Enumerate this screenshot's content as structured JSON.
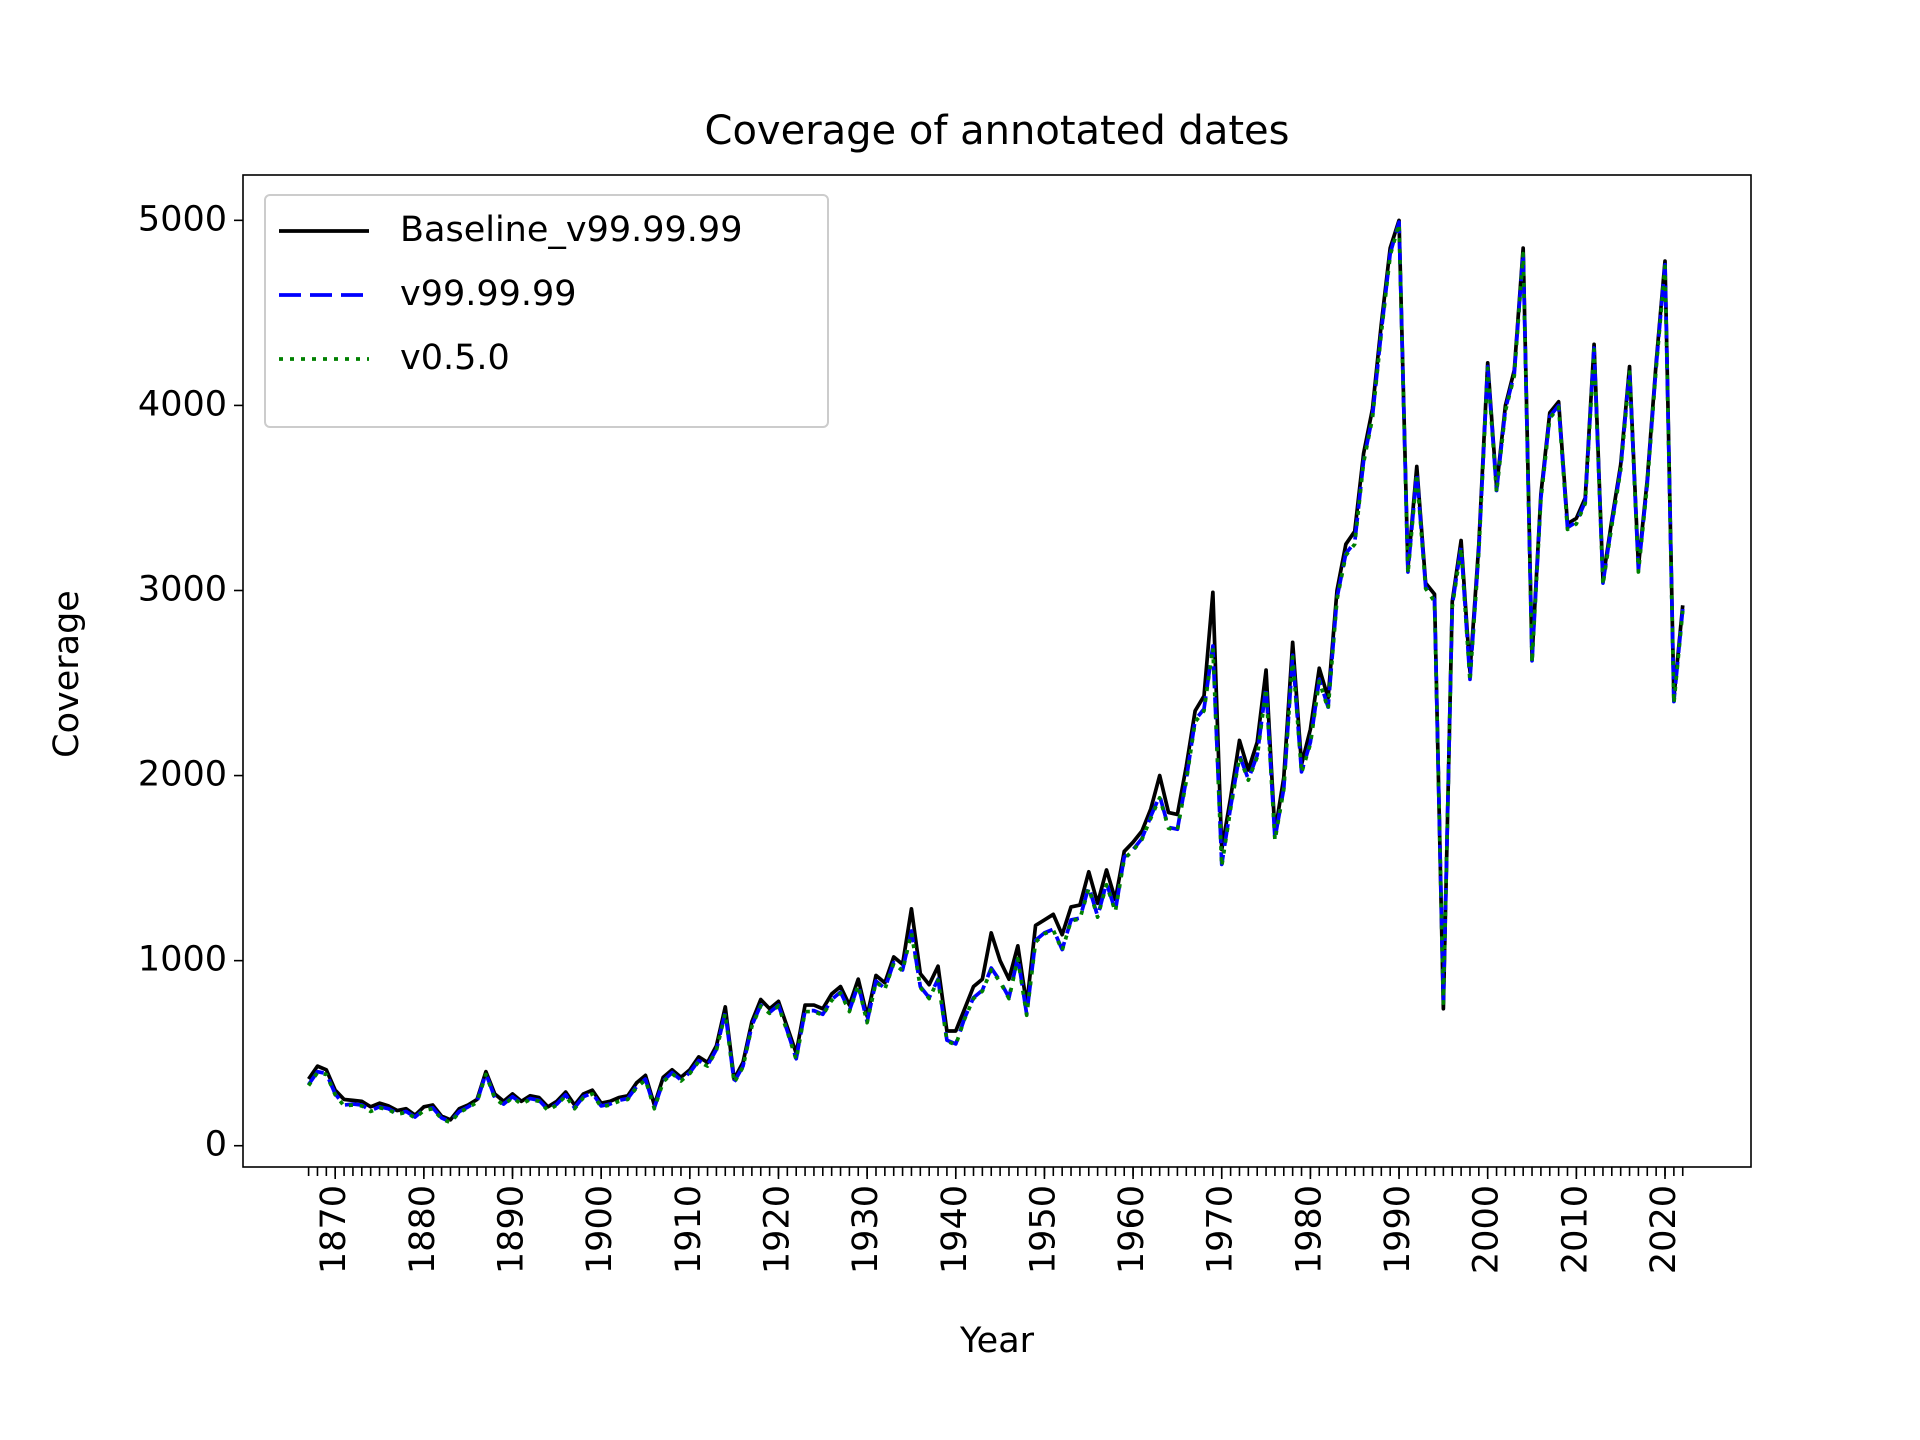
{
  "chart_data": {
    "type": "line",
    "title": "Coverage of annotated dates",
    "xlabel": "Year",
    "ylabel": "Coverage",
    "x": [
      1867,
      1868,
      1869,
      1870,
      1871,
      1872,
      1873,
      1874,
      1875,
      1876,
      1877,
      1878,
      1879,
      1880,
      1881,
      1882,
      1883,
      1884,
      1885,
      1886,
      1887,
      1888,
      1889,
      1890,
      1891,
      1892,
      1893,
      1894,
      1895,
      1896,
      1897,
      1898,
      1899,
      1900,
      1901,
      1902,
      1903,
      1904,
      1905,
      1906,
      1907,
      1908,
      1909,
      1910,
      1911,
      1912,
      1913,
      1914,
      1915,
      1916,
      1917,
      1918,
      1919,
      1920,
      1921,
      1922,
      1923,
      1924,
      1925,
      1926,
      1927,
      1928,
      1929,
      1930,
      1931,
      1932,
      1933,
      1934,
      1935,
      1936,
      1937,
      1938,
      1939,
      1940,
      1941,
      1942,
      1943,
      1944,
      1945,
      1946,
      1947,
      1948,
      1949,
      1950,
      1951,
      1952,
      1953,
      1954,
      1955,
      1956,
      1957,
      1958,
      1959,
      1960,
      1961,
      1962,
      1963,
      1964,
      1965,
      1966,
      1967,
      1968,
      1969,
      1970,
      1971,
      1972,
      1973,
      1974,
      1975,
      1976,
      1977,
      1978,
      1979,
      1980,
      1981,
      1982,
      1983,
      1984,
      1985,
      1986,
      1987,
      1988,
      1989,
      1990,
      1991,
      1992,
      1993,
      1994,
      1995,
      1996,
      1997,
      1998,
      1999,
      2000,
      2001,
      2002,
      2003,
      2004,
      2005,
      2006,
      2007,
      2008,
      2009,
      2010,
      2011,
      2012,
      2013,
      2014,
      2015,
      2016,
      2017,
      2018,
      2019,
      2020,
      2021,
      2022
    ],
    "series": [
      {
        "name": "Baseline_v99.99.99",
        "color": "#000000",
        "dash": "solid",
        "values": [
          360,
          430,
          410,
          300,
          250,
          245,
          240,
          210,
          230,
          215,
          190,
          200,
          165,
          210,
          220,
          160,
          140,
          200,
          220,
          250,
          400,
          280,
          240,
          280,
          240,
          270,
          260,
          210,
          240,
          290,
          220,
          280,
          300,
          230,
          240,
          260,
          270,
          340,
          380,
          220,
          370,
          410,
          370,
          410,
          480,
          450,
          540,
          750,
          360,
          450,
          670,
          790,
          740,
          780,
          640,
          500,
          760,
          760,
          740,
          820,
          860,
          760,
          900,
          700,
          920,
          880,
          1020,
          980,
          1280,
          930,
          870,
          970,
          620,
          620,
          740,
          860,
          900,
          1150,
          1000,
          900,
          1080,
          760,
          1190,
          1220,
          1250,
          1140,
          1290,
          1300,
          1480,
          1310,
          1490,
          1330,
          1590,
          1640,
          1700,
          1820,
          2000,
          1800,
          1790,
          2050,
          2350,
          2430,
          2990,
          1600,
          1880,
          2190,
          2030,
          2180,
          2570,
          1690,
          1990,
          2720,
          2060,
          2250,
          2580,
          2420,
          3000,
          3250,
          3320,
          3740,
          3980,
          4440,
          4850,
          5000,
          3120,
          3670,
          3040,
          2980,
          740,
          2940,
          3270,
          2560,
          3250,
          4230,
          3560,
          4000,
          4190,
          4850,
          2640,
          3520,
          3960,
          4020,
          3360,
          3390,
          3500,
          4330,
          3060,
          3380,
          3680,
          4210,
          3130,
          3600,
          4230,
          4780,
          2420,
          2920
        ]
      },
      {
        "name": "v99.99.99",
        "color": "#0000ff",
        "dash": "dashed",
        "values": [
          330,
          400,
          390,
          280,
          220,
          225,
          220,
          190,
          210,
          200,
          175,
          185,
          155,
          195,
          205,
          150,
          130,
          185,
          210,
          240,
          390,
          260,
          225,
          265,
          230,
          255,
          245,
          195,
          225,
          275,
          205,
          265,
          285,
          215,
          225,
          245,
          255,
          320,
          360,
          205,
          350,
          395,
          355,
          395,
          460,
          435,
          520,
          720,
          345,
          430,
          650,
          760,
          720,
          760,
          620,
          470,
          730,
          730,
          710,
          790,
          830,
          730,
          870,
          670,
          890,
          850,
          990,
          950,
          1160,
          860,
          800,
          900,
          570,
          550,
          690,
          800,
          840,
          960,
          890,
          800,
          1020,
          710,
          1110,
          1150,
          1170,
          1060,
          1220,
          1230,
          1400,
          1240,
          1420,
          1270,
          1560,
          1600,
          1660,
          1780,
          1890,
          1720,
          1710,
          1980,
          2300,
          2360,
          2700,
          1520,
          1830,
          2110,
          1980,
          2110,
          2480,
          1660,
          1930,
          2650,
          2020,
          2180,
          2520,
          2370,
          2960,
          3200,
          3260,
          3700,
          3940,
          4400,
          4820,
          4990,
          3100,
          3640,
          3020,
          2950,
          780,
          2920,
          3240,
          2520,
          3220,
          4210,
          3540,
          3980,
          4170,
          4830,
          2620,
          3500,
          3940,
          4000,
          3340,
          3370,
          3480,
          4310,
          3040,
          3360,
          3660,
          4190,
          3110,
          3580,
          4210,
          4760,
          2400,
          2900
        ]
      },
      {
        "name": "v0.5.0",
        "color": "#008000",
        "dash": "dotted",
        "values": [
          325,
          395,
          385,
          275,
          215,
          220,
          215,
          185,
          205,
          195,
          170,
          180,
          150,
          190,
          200,
          145,
          125,
          180,
          205,
          235,
          385,
          255,
          220,
          260,
          225,
          250,
          240,
          190,
          220,
          270,
          200,
          260,
          280,
          210,
          220,
          240,
          250,
          315,
          355,
          200,
          345,
          390,
          350,
          390,
          455,
          430,
          515,
          715,
          340,
          425,
          645,
          755,
          715,
          755,
          615,
          465,
          725,
          725,
          705,
          785,
          825,
          725,
          865,
          665,
          885,
          845,
          985,
          945,
          1150,
          855,
          795,
          895,
          565,
          545,
          685,
          795,
          835,
          950,
          885,
          795,
          1010,
          705,
          1100,
          1145,
          1165,
          1055,
          1215,
          1225,
          1390,
          1235,
          1410,
          1265,
          1550,
          1595,
          1655,
          1770,
          1880,
          1715,
          1705,
          1970,
          2290,
          2350,
          2690,
          1510,
          1820,
          2100,
          1975,
          2100,
          2470,
          1650,
          1925,
          2640,
          2015,
          2170,
          2510,
          2360,
          2950,
          3190,
          3250,
          3690,
          3930,
          4390,
          4810,
          4980,
          3090,
          3630,
          3010,
          2940,
          770,
          2910,
          3230,
          2510,
          3210,
          4200,
          3530,
          3970,
          4160,
          4820,
          2610,
          3490,
          3930,
          3990,
          3330,
          3360,
          3470,
          4300,
          3030,
          3350,
          3650,
          4180,
          3100,
          3570,
          4200,
          4750,
          2390,
          2890
        ]
      }
    ],
    "xlim": [
      1859.6,
      2029.7
    ],
    "xticks": [
      1870,
      1880,
      1890,
      1900,
      1910,
      1920,
      1930,
      1940,
      1950,
      1960,
      1970,
      1980,
      1990,
      2000,
      2010,
      2020
    ],
    "ylim": [
      -115,
      5245
    ],
    "yticks": [
      0,
      1000,
      2000,
      3000,
      4000,
      5000
    ],
    "grid": false,
    "legend": "upper left"
  }
}
